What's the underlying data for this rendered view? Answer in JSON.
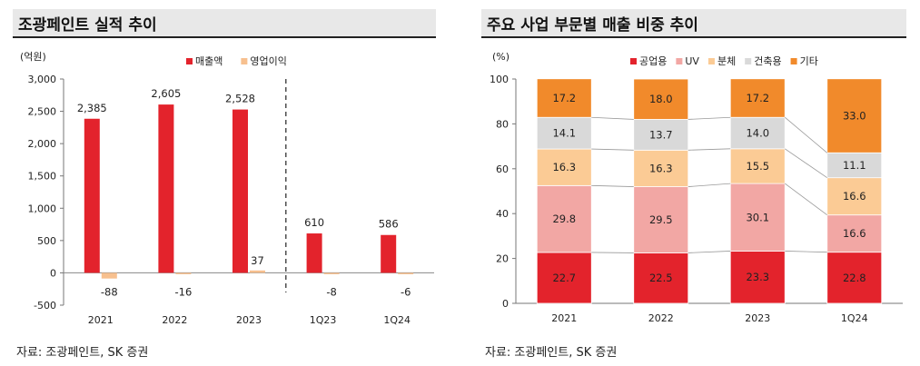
{
  "left": {
    "title": "조광페인트 실적 추이",
    "source": "자료: 조광페인트, SK 증권",
    "chart_data": {
      "type": "bar",
      "unit": "(억원)",
      "categories": [
        "2021",
        "2022",
        "2023",
        "1Q23",
        "1Q24"
      ],
      "series": [
        {
          "name": "매출액",
          "values": [
            2385,
            2605,
            2528,
            610,
            586
          ],
          "labels": [
            "2,385",
            "2,605",
            "2,528",
            "610",
            "586"
          ],
          "color": "#e3232c"
        },
        {
          "name": "영업이익",
          "values": [
            -88,
            -16,
            37,
            -8,
            -6
          ],
          "labels": [
            "-88",
            "-16",
            "37",
            "-8",
            "-6"
          ],
          "color": "#f7c08f"
        }
      ],
      "ylim": [
        -500,
        3000
      ],
      "yticks": [
        -500,
        0,
        500,
        1000,
        1500,
        2000,
        2500,
        3000
      ],
      "ytick_labels": [
        "-500",
        "0",
        "500",
        "1,000",
        "1,500",
        "2,000",
        "2,500",
        "3,000"
      ],
      "divider_after_category": "2023",
      "legend_position": "top"
    }
  },
  "right": {
    "title": "주요 사업 부문별 매출 비중 추이",
    "source": "자료: 조광페인트, SK 증권",
    "chart_data": {
      "type": "bar",
      "stacked": true,
      "unit": "(%)",
      "categories": [
        "2021",
        "2022",
        "2023",
        "1Q24"
      ],
      "series": [
        {
          "name": "공업용",
          "values": [
            22.7,
            22.5,
            23.3,
            22.8
          ],
          "color": "#e3232c",
          "label_color": "#ffffff"
        },
        {
          "name": "UV",
          "values": [
            29.8,
            29.5,
            30.1,
            16.6
          ],
          "color": "#f2a7a4",
          "label_color": "#222222"
        },
        {
          "name": "분체",
          "values": [
            16.3,
            16.3,
            15.5,
            16.6
          ],
          "color": "#fbcb95",
          "label_color": "#222222"
        },
        {
          "name": "건축용",
          "values": [
            14.1,
            13.7,
            14.0,
            11.1
          ],
          "color": "#d9d9d9",
          "label_color": "#222222"
        },
        {
          "name": "기타",
          "values": [
            17.2,
            18.0,
            17.2,
            33.0
          ],
          "color": "#f18a2b",
          "label_color": "#ffffff"
        }
      ],
      "ylim": [
        0,
        100
      ],
      "yticks": [
        0,
        20,
        40,
        60,
        80,
        100
      ],
      "connector_lines": true,
      "legend_position": "top"
    }
  }
}
